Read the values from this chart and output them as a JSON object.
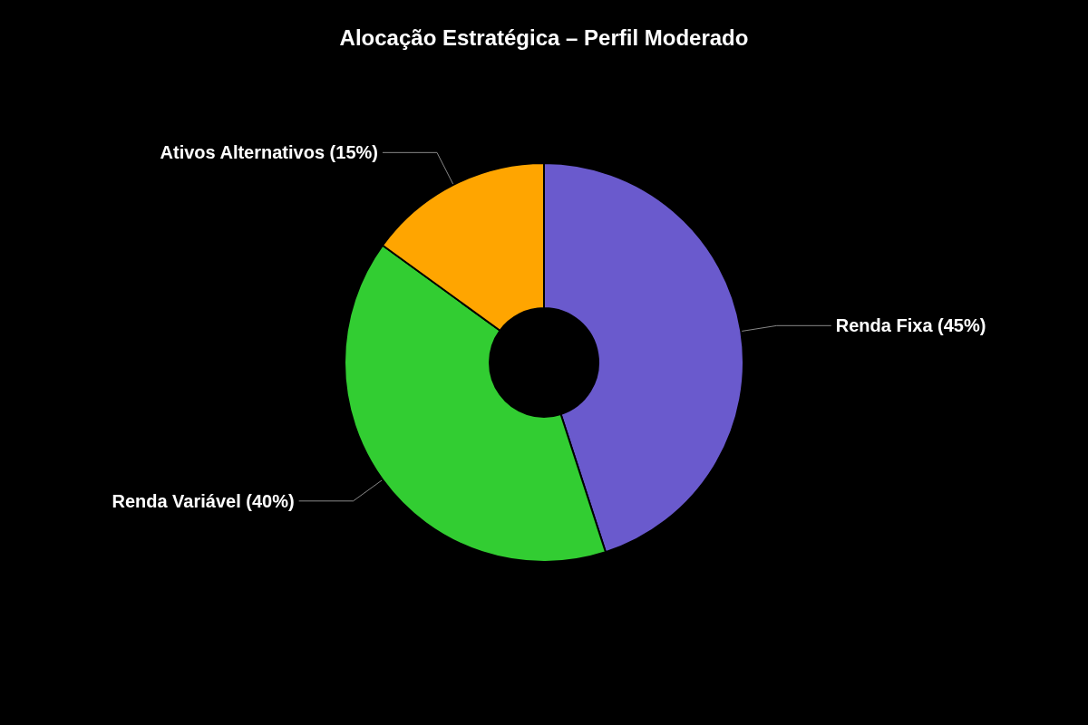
{
  "chart_data": {
    "type": "donut",
    "title": "Alocação Estratégica – Perfil Moderado",
    "categories": [
      "Renda Fixa (45%)",
      "Renda Variável (40%)",
      "Ativos Alternativos (15%)"
    ],
    "values": [
      45,
      40,
      15
    ],
    "colors": [
      "#6a5acd",
      "#32cd32",
      "#ffa500"
    ],
    "legend": false
  }
}
